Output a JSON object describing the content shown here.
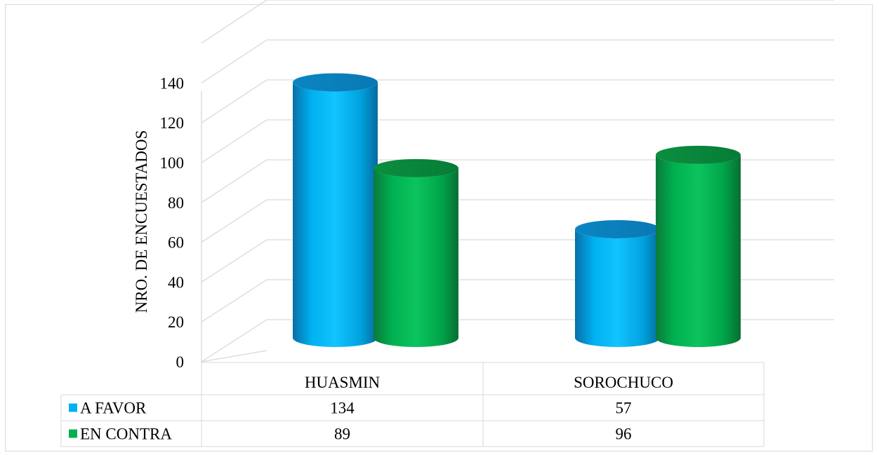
{
  "chart_data": {
    "type": "bar",
    "style": "3d-cylinder",
    "categories": [
      "HUASMIN",
      "SOROCHUCO"
    ],
    "series": [
      {
        "name": "A FAVOR",
        "values": [
          134,
          57
        ],
        "color": "#00b0f0"
      },
      {
        "name": "EN CONTRA",
        "values": [
          89,
          96
        ],
        "color": "#00b050"
      }
    ],
    "ylabel": "NRO. DE ENCUESTADOS",
    "xlabel": "",
    "ylim": [
      0,
      140
    ],
    "yticks": [
      0,
      20,
      40,
      60,
      80,
      100,
      120,
      140
    ],
    "grid": true,
    "legend": "data-table",
    "data_table": true
  }
}
